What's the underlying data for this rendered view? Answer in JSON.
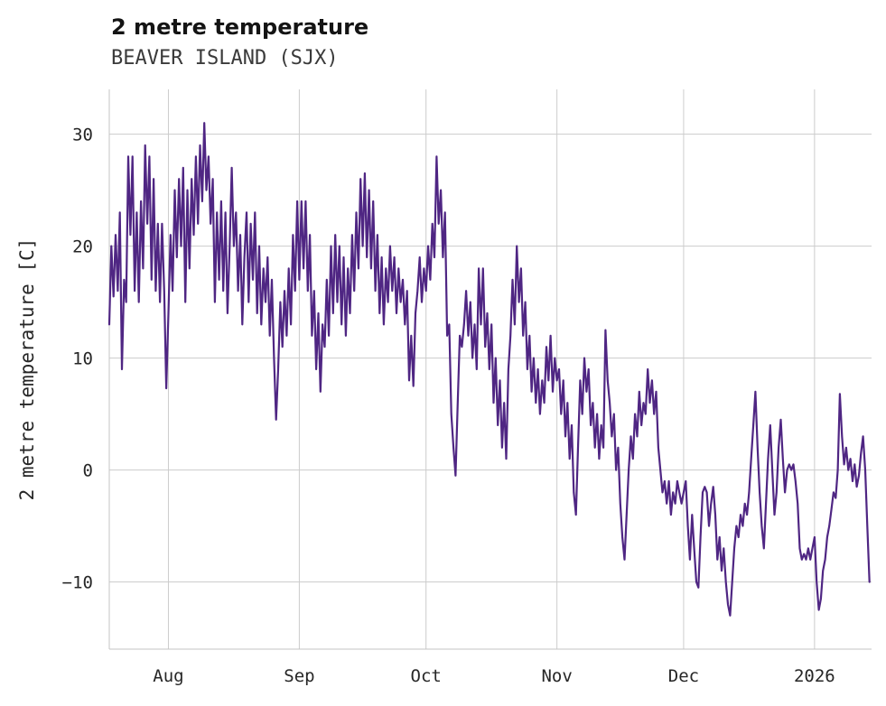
{
  "header": {
    "title": "2 metre temperature",
    "subtitle": "BEAVER ISLAND (SJX)"
  },
  "chart_data": {
    "type": "line",
    "title": "2 metre temperature",
    "subtitle": "BEAVER ISLAND (SJX)",
    "station": "BEAVER ISLAND (SJX)",
    "xlabel": "",
    "ylabel": "2 metre temperature [C]",
    "unit": "C",
    "line_color": "#4f2683",
    "grid_color": "#cccccc",
    "spine_color": "#c4c4c4",
    "text_color": "#262626",
    "ylim": [
      -16,
      34
    ],
    "yticks": [
      -10,
      0,
      10,
      20,
      30
    ],
    "ytick_labels": [
      "-10",
      "0",
      "10",
      "20",
      "30"
    ],
    "grid": true,
    "legend": "none",
    "x_axis": {
      "description": "time, approx mid-July 2025 through mid-January 2026",
      "domain_days": [
        0,
        180.5
      ],
      "start_date": "2025-07-18",
      "ticks": [
        {
          "day": 14,
          "label": "Aug"
        },
        {
          "day": 45,
          "label": "Sep"
        },
        {
          "day": 75,
          "label": "Oct"
        },
        {
          "day": 106,
          "label": "Nov"
        },
        {
          "day": 136,
          "label": "Dec"
        },
        {
          "day": 167,
          "label": "2026"
        }
      ]
    },
    "sampling_interval_days": 0.5,
    "values": [
      13,
      20,
      15.5,
      21,
      16,
      23,
      9,
      17,
      15,
      28,
      21,
      28,
      16,
      23,
      15,
      24,
      18,
      29,
      22,
      28,
      17,
      26,
      16,
      22,
      15,
      22,
      16,
      7.3,
      14,
      21,
      16,
      25,
      19,
      26,
      20,
      27,
      15,
      25,
      18,
      26,
      21,
      28,
      22,
      29,
      24,
      31,
      25,
      28,
      22,
      26,
      15,
      23,
      17,
      24,
      16,
      23,
      14,
      20,
      27,
      20,
      23,
      16,
      21,
      13,
      19,
      23,
      15,
      22,
      17,
      23,
      14,
      20,
      13,
      18,
      15,
      19,
      12,
      17,
      10,
      4.5,
      9,
      15,
      11,
      16,
      12,
      18,
      13,
      21,
      16,
      24,
      17,
      24,
      18,
      24,
      16,
      21,
      12,
      16,
      9,
      14,
      7,
      13,
      11,
      17,
      12,
      20,
      14,
      21,
      15,
      20,
      13,
      19,
      12,
      18,
      14,
      21,
      16,
      23,
      18,
      26,
      20,
      26.5,
      19,
      25,
      18,
      24,
      16,
      21,
      14,
      19,
      13,
      18,
      15,
      20,
      16,
      19,
      14,
      18,
      15,
      17,
      13,
      16,
      8,
      12,
      7.5,
      14,
      16,
      19,
      15,
      18,
      16,
      20,
      17,
      22,
      19,
      28,
      22,
      25,
      19,
      23,
      12,
      13,
      5,
      2,
      -0.5,
      6,
      12,
      11,
      13,
      16,
      12,
      15,
      10,
      13,
      9,
      18,
      13,
      18,
      11,
      14,
      9,
      13,
      6,
      10,
      4,
      8,
      2,
      6,
      1,
      9,
      12,
      17,
      13,
      20,
      15,
      18,
      12,
      15,
      9,
      12,
      7,
      10,
      6,
      9,
      5,
      8,
      6,
      11,
      8,
      12,
      7,
      10,
      8,
      9,
      5,
      8,
      3,
      6,
      1,
      4,
      -2,
      -4,
      2,
      8,
      5,
      10,
      7,
      9,
      4,
      6,
      2,
      5,
      1,
      4,
      2,
      12.5,
      8,
      6,
      3,
      5,
      0,
      2,
      -3,
      -6,
      -8,
      -4,
      0,
      3,
      1,
      5,
      3,
      7,
      4,
      6,
      5,
      9,
      6,
      8,
      5,
      7,
      2,
      0,
      -2,
      -1,
      -3,
      -1,
      -4,
      -2,
      -3,
      -1,
      -2,
      -3,
      -2,
      -1,
      -5,
      -8,
      -4,
      -7,
      -10,
      -10.5,
      -6,
      -2,
      -1.5,
      -2,
      -5,
      -3,
      -1.5,
      -4,
      -8,
      -6,
      -9,
      -7,
      -10,
      -12,
      -13,
      -10,
      -7,
      -5,
      -6,
      -4,
      -5,
      -3,
      -4,
      -2,
      1,
      4,
      7,
      2,
      -2,
      -5,
      -7,
      -3,
      1,
      4,
      0,
      -4,
      -2,
      2,
      4.5,
      1,
      -2,
      0,
      0.5,
      0,
      0.5,
      -1,
      -3,
      -7,
      -8,
      -7.5,
      -8,
      -7,
      -8,
      -7,
      -6,
      -10,
      -12.5,
      -11.5,
      -9,
      -8,
      -6,
      -5,
      -3.5,
      -2,
      -2.5,
      0,
      6.8,
      3,
      0.5,
      2,
      0,
      1,
      -1,
      0.5,
      -1.5,
      -0.5,
      1.5,
      3,
      0,
      -5,
      -10
    ]
  }
}
